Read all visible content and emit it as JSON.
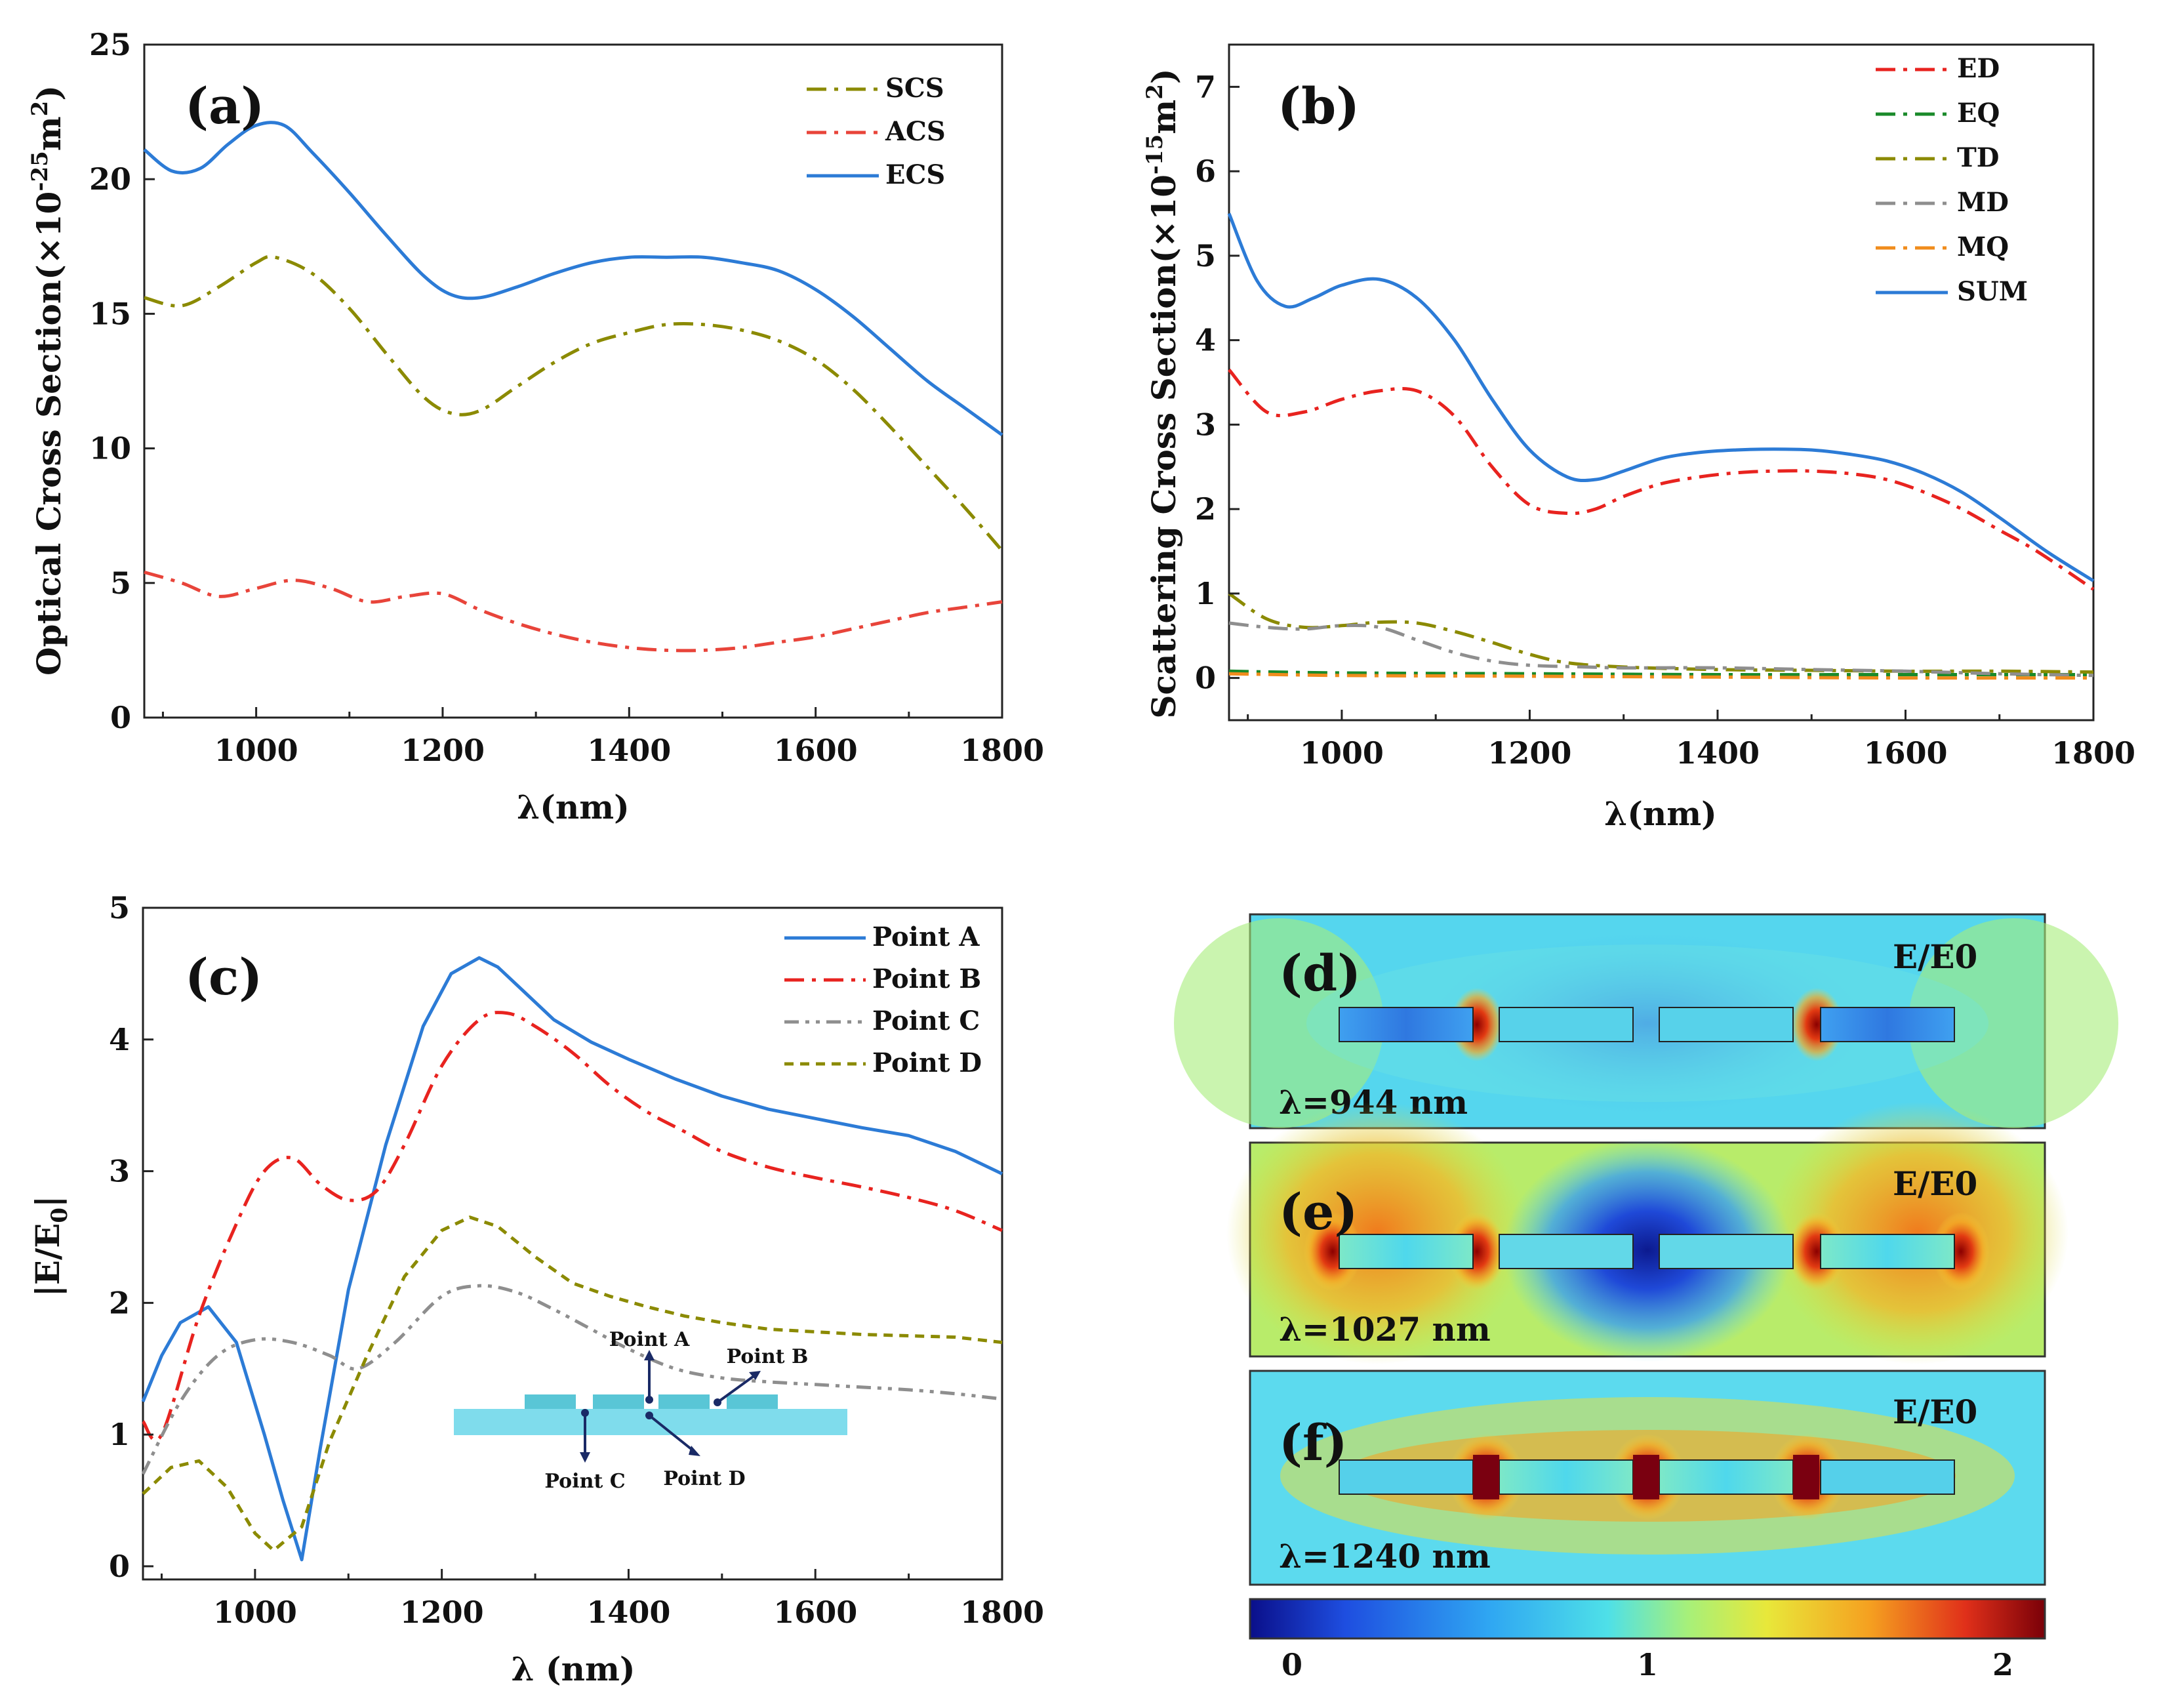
{
  "chart_data": [
    {
      "id": "a",
      "type": "line",
      "panel_label": "(a)",
      "xlabel": "λ(nm)",
      "ylabel": "Optical Cross Section(×10^-25 m^2)",
      "ylabel_parts": {
        "main": "Optical Cross Section(×10",
        "exp1": "-25",
        "mid": "m",
        "exp2": "2",
        "end": ")"
      },
      "xlim": [
        880,
        1800
      ],
      "ylim": [
        0,
        25
      ],
      "xticks": [
        1000,
        1200,
        1400,
        1600,
        1800
      ],
      "yticks": [
        0,
        5,
        10,
        15,
        20,
        25
      ],
      "legend_position": "top-right",
      "series": [
        {
          "name": "SCS",
          "color": "#8b8a00",
          "style": "dashdot",
          "x": [
            880,
            920,
            960,
            1000,
            1020,
            1060,
            1100,
            1140,
            1180,
            1210,
            1240,
            1280,
            1320,
            1360,
            1400,
            1440,
            1480,
            1520,
            1560,
            1600,
            1640,
            1680,
            1720,
            1760,
            1800
          ],
          "y": [
            15.6,
            15.3,
            16.0,
            16.9,
            17.1,
            16.5,
            15.2,
            13.5,
            11.9,
            11.3,
            11.4,
            12.3,
            13.2,
            13.9,
            14.3,
            14.6,
            14.6,
            14.4,
            14.0,
            13.3,
            12.2,
            10.8,
            9.3,
            7.8,
            6.2
          ]
        },
        {
          "name": "ACS",
          "color": "#e8443a",
          "style": "dashdot",
          "x": [
            880,
            920,
            960,
            1000,
            1040,
            1080,
            1120,
            1160,
            1200,
            1240,
            1280,
            1320,
            1360,
            1400,
            1440,
            1480,
            1520,
            1560,
            1600,
            1640,
            1680,
            1720,
            1760,
            1800
          ],
          "y": [
            5.4,
            5.0,
            4.5,
            4.8,
            5.1,
            4.8,
            4.3,
            4.5,
            4.6,
            4.0,
            3.5,
            3.1,
            2.8,
            2.6,
            2.5,
            2.5,
            2.6,
            2.8,
            3.0,
            3.3,
            3.6,
            3.9,
            4.1,
            4.3
          ]
        },
        {
          "name": "ECS",
          "color": "#2c7bd6",
          "style": "solid",
          "x": [
            880,
            910,
            940,
            970,
            1000,
            1030,
            1060,
            1100,
            1140,
            1180,
            1210,
            1240,
            1280,
            1320,
            1360,
            1400,
            1440,
            1480,
            1520,
            1560,
            1600,
            1640,
            1680,
            1720,
            1760,
            1800
          ],
          "y": [
            21.1,
            20.3,
            20.4,
            21.3,
            22.0,
            22.0,
            21.0,
            19.5,
            17.9,
            16.4,
            15.7,
            15.6,
            16.0,
            16.5,
            16.9,
            17.1,
            17.1,
            17.1,
            16.9,
            16.6,
            15.9,
            14.9,
            13.7,
            12.5,
            11.5,
            10.5
          ]
        }
      ]
    },
    {
      "id": "b",
      "type": "line",
      "panel_label": "(b)",
      "xlabel": "λ(nm)",
      "ylabel": "Scattering Cross Section(×10^-15 m^2)",
      "ylabel_parts": {
        "main": "Scattering Cross Section(×10",
        "exp1": "-15",
        "mid": "m",
        "exp2": "2",
        "end": ")"
      },
      "xlim": [
        880,
        1800
      ],
      "ylim": [
        -0.5,
        7.5
      ],
      "xticks": [
        1000,
        1200,
        1400,
        1600,
        1800
      ],
      "yticks": [
        0,
        1,
        2,
        3,
        4,
        5,
        6,
        7
      ],
      "legend_position": "top-right",
      "series": [
        {
          "name": "ED",
          "color": "#e8231f",
          "style": "dashdot",
          "x": [
            880,
            920,
            960,
            1000,
            1040,
            1080,
            1120,
            1160,
            1200,
            1240,
            1270,
            1300,
            1340,
            1380,
            1420,
            1460,
            1500,
            1540,
            1580,
            1620,
            1660,
            1700,
            1740,
            1800
          ],
          "y": [
            3.65,
            3.15,
            3.15,
            3.3,
            3.4,
            3.4,
            3.1,
            2.5,
            2.05,
            1.95,
            2.0,
            2.15,
            2.3,
            2.38,
            2.43,
            2.45,
            2.45,
            2.42,
            2.35,
            2.2,
            2.0,
            1.75,
            1.5,
            1.05
          ]
        },
        {
          "name": "EQ",
          "color": "#1a8a2a",
          "style": "dashdot",
          "x": [
            880,
            1000,
            1200,
            1400,
            1600,
            1800
          ],
          "y": [
            0.08,
            0.06,
            0.05,
            0.04,
            0.04,
            0.04
          ]
        },
        {
          "name": "TD",
          "color": "#8b8a00",
          "style": "dashdot",
          "x": [
            880,
            920,
            960,
            1000,
            1040,
            1080,
            1120,
            1160,
            1200,
            1240,
            1300,
            1400,
            1500,
            1600,
            1700,
            1800
          ],
          "y": [
            1.0,
            0.7,
            0.6,
            0.62,
            0.66,
            0.65,
            0.55,
            0.42,
            0.28,
            0.18,
            0.13,
            0.1,
            0.09,
            0.08,
            0.08,
            0.07
          ]
        },
        {
          "name": "MD",
          "color": "#8e8e8e",
          "style": "dashdot",
          "x": [
            880,
            920,
            960,
            1000,
            1040,
            1080,
            1120,
            1160,
            1200,
            1260,
            1300,
            1400,
            1500,
            1600,
            1700,
            1800
          ],
          "y": [
            0.65,
            0.6,
            0.58,
            0.62,
            0.6,
            0.45,
            0.3,
            0.2,
            0.15,
            0.13,
            0.12,
            0.12,
            0.1,
            0.08,
            0.05,
            0.03
          ]
        },
        {
          "name": "MQ",
          "color": "#f08c1c",
          "style": "dashdot",
          "x": [
            880,
            1000,
            1200,
            1400,
            1600,
            1800
          ],
          "y": [
            0.05,
            0.03,
            0.02,
            0.01,
            0.0,
            0.0
          ]
        },
        {
          "name": "SUM",
          "color": "#2c7bd6",
          "style": "solid",
          "x": [
            880,
            910,
            940,
            970,
            1000,
            1040,
            1080,
            1120,
            1160,
            1200,
            1240,
            1270,
            1300,
            1340,
            1380,
            1420,
            1460,
            1500,
            1540,
            1580,
            1620,
            1660,
            1700,
            1750,
            1800
          ],
          "y": [
            5.5,
            4.7,
            4.4,
            4.5,
            4.65,
            4.72,
            4.5,
            4.0,
            3.3,
            2.7,
            2.38,
            2.35,
            2.45,
            2.6,
            2.67,
            2.7,
            2.71,
            2.7,
            2.65,
            2.57,
            2.42,
            2.2,
            1.9,
            1.5,
            1.15
          ]
        }
      ]
    },
    {
      "id": "c",
      "type": "line",
      "panel_label": "(c)",
      "xlabel": "λ (nm)",
      "ylabel": "|E/E0|",
      "ylabel_parts": {
        "main": "|E/E",
        "sub": "0",
        "end": "|"
      },
      "xlim": [
        880,
        1800
      ],
      "ylim": [
        -0.1,
        5.0
      ],
      "xticks": [
        1000,
        1200,
        1400,
        1600,
        1800
      ],
      "yticks": [
        0,
        1,
        2,
        3,
        4,
        5
      ],
      "legend_position": "top-right",
      "series": [
        {
          "name": "Point A",
          "color": "#2c7bd6",
          "style": "solid",
          "x": [
            880,
            900,
            920,
            950,
            980,
            1010,
            1030,
            1050,
            1070,
            1100,
            1140,
            1180,
            1210,
            1240,
            1260,
            1290,
            1320,
            1360,
            1400,
            1450,
            1500,
            1550,
            1600,
            1650,
            1700,
            1750,
            1800
          ],
          "y": [
            1.25,
            1.6,
            1.85,
            1.97,
            1.7,
            1.0,
            0.5,
            0.05,
            0.9,
            2.1,
            3.2,
            4.1,
            4.5,
            4.62,
            4.55,
            4.35,
            4.15,
            3.98,
            3.85,
            3.7,
            3.57,
            3.47,
            3.4,
            3.33,
            3.27,
            3.15,
            2.98
          ]
        },
        {
          "name": "Point B",
          "color": "#e8231f",
          "style": "dashdot",
          "x": [
            880,
            900,
            940,
            980,
            1010,
            1040,
            1070,
            1100,
            1130,
            1160,
            1200,
            1240,
            1270,
            1300,
            1340,
            1380,
            1420,
            1460,
            1500,
            1550,
            1600,
            1650,
            1700,
            1750,
            1800
          ],
          "y": [
            1.1,
            1.0,
            1.9,
            2.6,
            3.0,
            3.1,
            2.9,
            2.78,
            2.85,
            3.2,
            3.8,
            4.15,
            4.2,
            4.1,
            3.9,
            3.65,
            3.45,
            3.3,
            3.15,
            3.03,
            2.95,
            2.88,
            2.8,
            2.7,
            2.55
          ]
        },
        {
          "name": "Point C",
          "color": "#8e8e8e",
          "style": "dashdotdot",
          "x": [
            880,
            920,
            960,
            1000,
            1040,
            1080,
            1110,
            1150,
            1200,
            1240,
            1280,
            1320,
            1360,
            1400,
            1450,
            1500,
            1550,
            1600,
            1650,
            1700,
            1750,
            1800
          ],
          "y": [
            0.7,
            1.25,
            1.6,
            1.72,
            1.7,
            1.6,
            1.5,
            1.7,
            2.05,
            2.13,
            2.08,
            1.95,
            1.8,
            1.65,
            1.5,
            1.43,
            1.4,
            1.38,
            1.36,
            1.34,
            1.31,
            1.27
          ]
        },
        {
          "name": "Point D",
          "color": "#8b8a00",
          "style": "dashed",
          "x": [
            880,
            910,
            940,
            970,
            1000,
            1020,
            1050,
            1080,
            1120,
            1160,
            1200,
            1230,
            1260,
            1300,
            1340,
            1380,
            1420,
            1460,
            1500,
            1550,
            1600,
            1650,
            1700,
            1750,
            1800
          ],
          "y": [
            0.55,
            0.75,
            0.8,
            0.6,
            0.25,
            0.12,
            0.3,
            0.95,
            1.6,
            2.2,
            2.55,
            2.65,
            2.58,
            2.35,
            2.15,
            2.05,
            1.97,
            1.9,
            1.85,
            1.8,
            1.78,
            1.76,
            1.75,
            1.74,
            1.7
          ]
        }
      ],
      "inset_labels": {
        "a": "Point A",
        "b": "Point B",
        "c": "Point C",
        "d": "Point D"
      }
    }
  ],
  "field_maps": {
    "colorbar_ticks": [
      "0",
      "1",
      "2"
    ],
    "colorbar_range": [
      0,
      2
    ],
    "panels": [
      {
        "panel_label": "(d)",
        "quantity": "E/E0",
        "wavelength_label": "λ=944 nm"
      },
      {
        "panel_label": "(e)",
        "quantity": "E/E0",
        "wavelength_label": "λ=1027 nm"
      },
      {
        "panel_label": "(f)",
        "quantity": "E/E0",
        "wavelength_label": "λ=1240 nm"
      }
    ]
  }
}
